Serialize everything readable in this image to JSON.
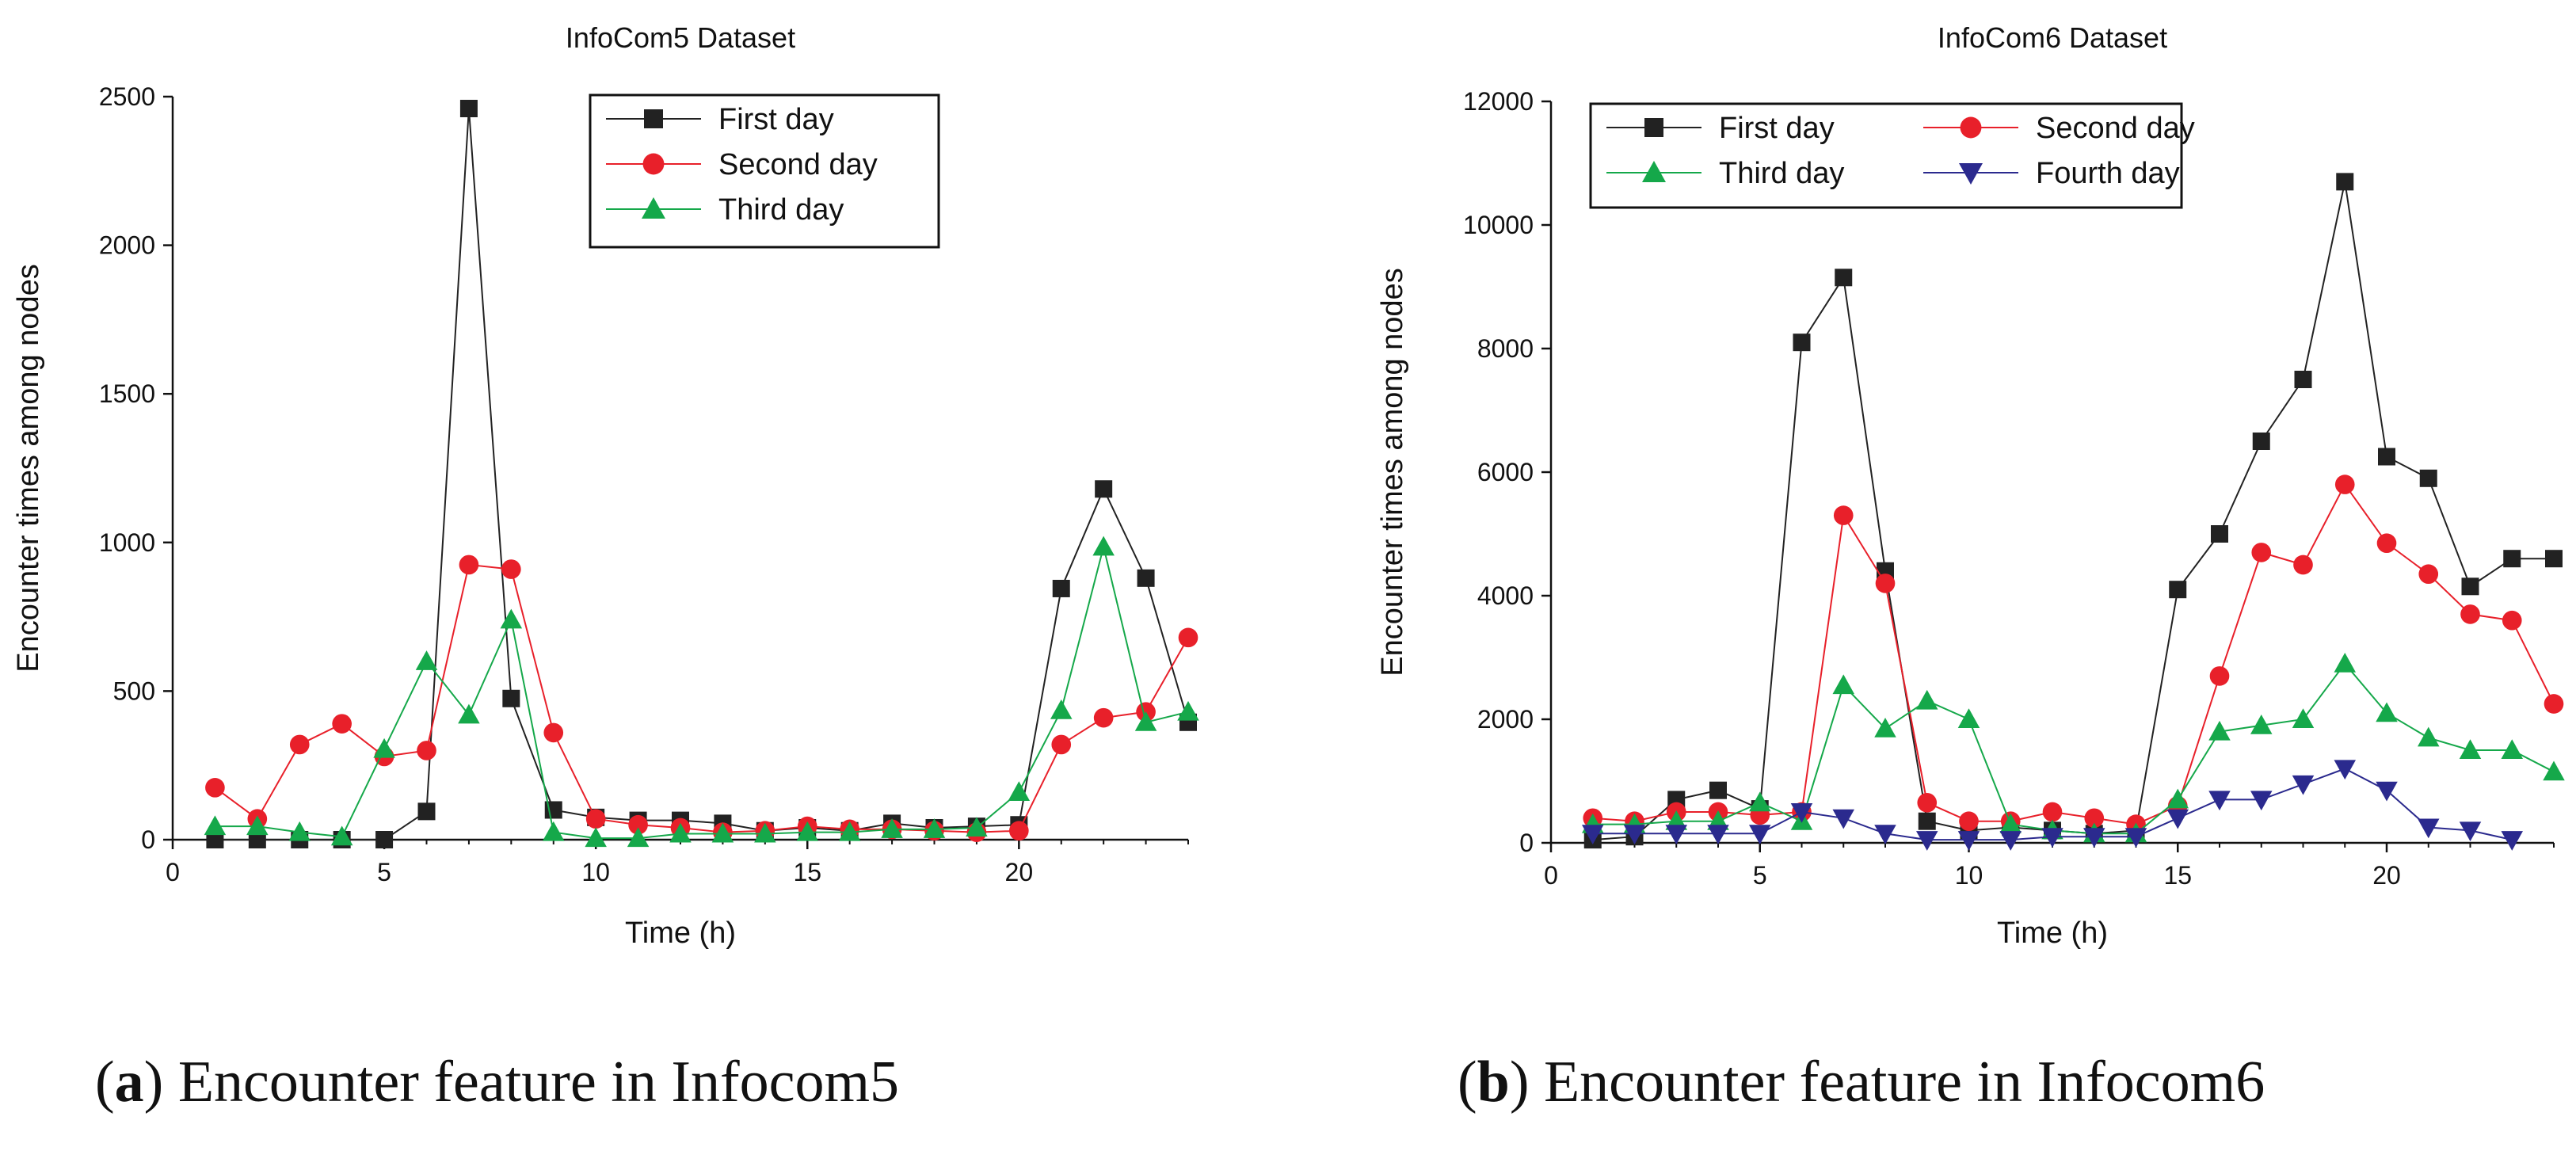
{
  "chart_data": [
    {
      "type": "line",
      "title": "InfoCom5 Dataset",
      "xlabel": "Time (h)",
      "ylabel": "Encounter times among nodes",
      "xlim": [
        0,
        24
      ],
      "ylim": [
        0,
        2500
      ],
      "xticks": [
        0,
        5,
        10,
        15,
        20
      ],
      "yticks": [
        0,
        500,
        1000,
        1500,
        2000,
        2500
      ],
      "grid": false,
      "legend_position": "top-center",
      "caption_label": "a",
      "caption_text": "Encounter feature in Infocom5",
      "x": [
        1,
        2,
        3,
        4,
        5,
        6,
        7,
        8,
        9,
        10,
        11,
        12,
        13,
        14,
        15,
        16,
        17,
        18,
        19,
        20,
        21,
        22,
        23,
        24
      ],
      "series": [
        {
          "name": "First day",
          "color": "#222222",
          "marker": "square",
          "values": [
            0,
            0,
            0,
            0,
            0,
            95,
            2460,
            475,
            100,
            75,
            65,
            65,
            55,
            30,
            40,
            30,
            55,
            40,
            45,
            50,
            845,
            1180,
            880,
            395
          ]
        },
        {
          "name": "Second day",
          "color": "#e8202a",
          "marker": "circle",
          "values": [
            175,
            70,
            320,
            390,
            280,
            300,
            925,
            910,
            360,
            70,
            50,
            40,
            25,
            30,
            45,
            35,
            35,
            30,
            25,
            30,
            320,
            410,
            430,
            680
          ]
        },
        {
          "name": "Third day",
          "color": "#15a84a",
          "marker": "triangle-up",
          "values": [
            45,
            45,
            25,
            10,
            305,
            600,
            420,
            740,
            25,
            5,
            5,
            20,
            20,
            20,
            25,
            25,
            35,
            35,
            40,
            160,
            435,
            985,
            395,
            430
          ]
        }
      ]
    },
    {
      "type": "line",
      "title": "InfoCom6 Dataset",
      "xlabel": "Time (h)",
      "ylabel": "Encounter times among nodes",
      "xlim": [
        0,
        24
      ],
      "ylim": [
        0,
        12000
      ],
      "xticks": [
        0,
        5,
        10,
        15,
        20
      ],
      "yticks": [
        0,
        2000,
        4000,
        6000,
        8000,
        10000,
        12000
      ],
      "grid": false,
      "legend_position": "top-left",
      "caption_label": "b",
      "caption_text": "Encounter feature in Infocom6",
      "x": [
        1,
        2,
        3,
        4,
        5,
        6,
        7,
        8,
        9,
        10,
        11,
        12,
        13,
        14,
        15,
        16,
        17,
        18,
        19,
        20,
        21,
        22,
        23,
        24
      ],
      "series": [
        {
          "name": "First day",
          "color": "#222222",
          "marker": "square",
          "values": [
            50,
            100,
            700,
            850,
            550,
            8100,
            9150,
            4400,
            350,
            200,
            250,
            200,
            150,
            200,
            4100,
            5000,
            6500,
            7500,
            10700,
            6250,
            5900,
            4150,
            4600,
            4600
          ]
        },
        {
          "name": "Second day",
          "color": "#e8202a",
          "marker": "circle",
          "values": [
            400,
            350,
            500,
            500,
            450,
            500,
            5300,
            4200,
            650,
            350,
            350,
            500,
            400,
            300,
            600,
            2700,
            4700,
            4500,
            5800,
            4850,
            4350,
            3700,
            3600,
            2250
          ]
        },
        {
          "name": "Third day",
          "color": "#15a84a",
          "marker": "triangle-up",
          "values": [
            300,
            300,
            350,
            350,
            650,
            350,
            2550,
            1850,
            2300,
            2000,
            300,
            200,
            150,
            150,
            700,
            1800,
            1900,
            2000,
            2900,
            2100,
            1700,
            1500,
            1500,
            1150
          ]
        },
        {
          "name": "Fourth day",
          "color": "#2b2a8e",
          "marker": "triangle-down",
          "values": [
            150,
            150,
            150,
            150,
            150,
            500,
            400,
            150,
            50,
            50,
            50,
            100,
            100,
            100,
            400,
            700,
            700,
            950,
            1200,
            850,
            250,
            200,
            50,
            null
          ]
        }
      ]
    }
  ]
}
